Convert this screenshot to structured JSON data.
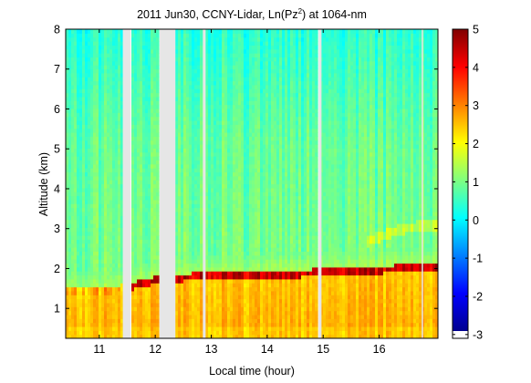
{
  "chart_data": {
    "type": "heatmap",
    "title_prefix": "2011 Jun30, CCNY-Lidar, Ln(Pz",
    "title_sup": "2",
    "title_suffix": ") at 1064-nm",
    "xlabel": "Local time (hour)",
    "ylabel": "Altitude (km)",
    "xlim": [
      10.4,
      17.05
    ],
    "ylim": [
      0.25,
      8.0
    ],
    "x_ticks": [
      11,
      12,
      13,
      14,
      15,
      16
    ],
    "y_ticks": [
      1,
      2,
      3,
      4,
      5,
      6,
      7,
      8
    ],
    "colorbar": {
      "range": [
        -3.1,
        5.0
      ],
      "ticks": [
        5,
        4,
        3,
        2,
        1,
        0,
        -1,
        -2,
        -3
      ],
      "tick_labels": [
        "5",
        "4",
        "3",
        "2",
        "1",
        "0",
        "-1",
        "-2",
        "-3"
      ],
      "colormap": "jet"
    },
    "data_gaps_hours": [
      [
        11.42,
        11.56
      ],
      [
        12.08,
        12.36
      ],
      [
        12.85,
        12.9
      ],
      [
        14.92,
        14.97
      ],
      [
        16.76,
        16.78
      ]
    ],
    "boundary_layer_top_km": [
      [
        10.4,
        1.45
      ],
      [
        11.0,
        1.45
      ],
      [
        11.3,
        1.5
      ],
      [
        11.42,
        1.55
      ],
      [
        11.6,
        1.6
      ],
      [
        11.9,
        1.7
      ],
      [
        12.0,
        1.75
      ],
      [
        12.4,
        1.8
      ],
      [
        12.8,
        1.85
      ],
      [
        13.2,
        1.85
      ],
      [
        13.6,
        1.85
      ],
      [
        14.0,
        1.9
      ],
      [
        14.5,
        1.9
      ],
      [
        15.0,
        1.95
      ],
      [
        15.5,
        1.95
      ],
      [
        16.0,
        2.0
      ],
      [
        16.5,
        2.05
      ],
      [
        17.05,
        2.05
      ]
    ],
    "upper_aerosol_layer_km": [
      [
        15.8,
        2.7
      ],
      [
        16.3,
        2.95
      ],
      [
        16.8,
        3.1
      ]
    ]
  }
}
